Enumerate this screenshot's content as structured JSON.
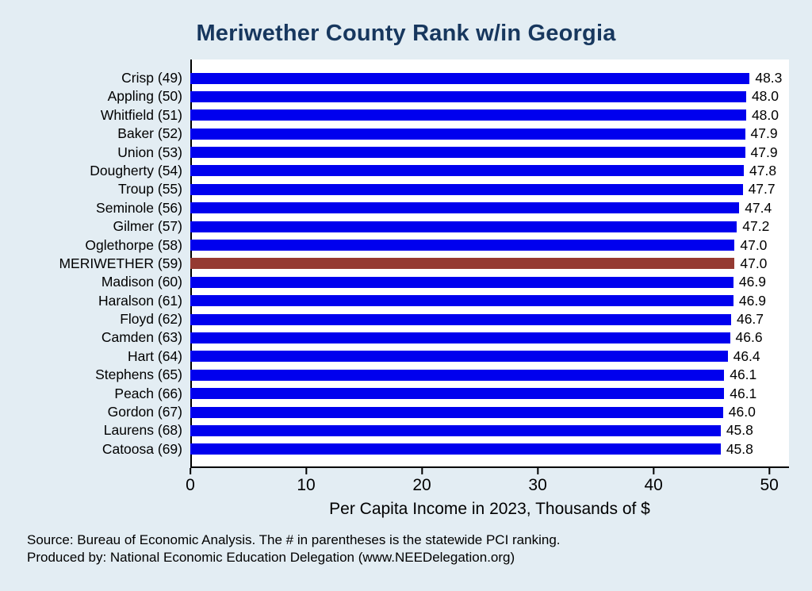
{
  "chart": {
    "title": "Meriwether County Rank w/in Georgia",
    "xlabel": "Per Capita Income in 2023, Thousands of $",
    "bar_color": "#0000ee",
    "highlight_color": "#953a32",
    "title_color": "#17375e"
  },
  "chart_data": {
    "type": "bar",
    "orientation": "horizontal",
    "title": "Meriwether County Rank w/in Georgia",
    "xlabel": "Per Capita Income in 2023, Thousands of $",
    "xlim": [
      0,
      50
    ],
    "xticks": [
      0,
      10,
      20,
      30,
      40,
      50
    ],
    "grid": false,
    "legend": false,
    "categories": [
      "Crisp (49)",
      "Appling (50)",
      "Whitfield (51)",
      "Baker (52)",
      "Union (53)",
      "Dougherty (54)",
      "Troup (55)",
      "Seminole (56)",
      "Gilmer (57)",
      "Oglethorpe (58)",
      "MERIWETHER (59)",
      "Madison (60)",
      "Haralson (61)",
      "Floyd (62)",
      "Camden (63)",
      "Hart (64)",
      "Stephens (65)",
      "Peach (66)",
      "Gordon (67)",
      "Laurens (68)",
      "Catoosa (69)"
    ],
    "values": [
      48.3,
      48.0,
      48.0,
      47.9,
      47.9,
      47.8,
      47.7,
      47.4,
      47.2,
      47.0,
      47.0,
      46.9,
      46.9,
      46.7,
      46.6,
      46.4,
      46.1,
      46.1,
      46.0,
      45.8,
      45.8
    ],
    "highlight_category": "MERIWETHER (59)"
  },
  "footer": {
    "line1": "Source: Bureau of Economic Analysis. The # in parentheses is the statewide PCI ranking.",
    "line2": "Produced by: National Economic Education Delegation (www.NEEDelegation.org)"
  }
}
